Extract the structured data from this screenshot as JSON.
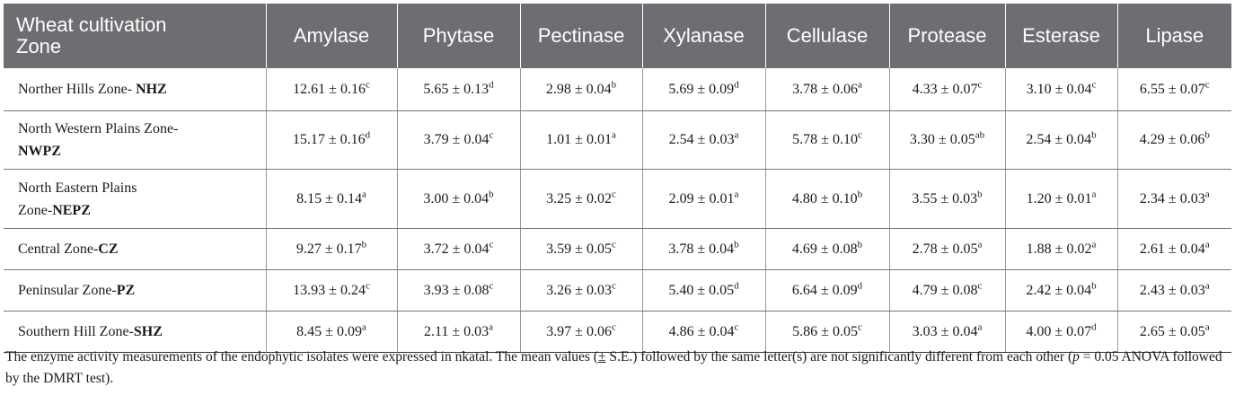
{
  "table": {
    "header_first": [
      "Wheat cultivation",
      "Zone"
    ],
    "columns": [
      "Amylase",
      "Phytase",
      "Pectinase",
      "Xylanase",
      "Cellulase",
      "Protease",
      "Esterase",
      "Lipase"
    ],
    "rows": [
      {
        "zone_lines": [
          {
            "text": "Norther Hills Zone- ",
            "abbr": "NHZ"
          }
        ],
        "values": [
          {
            "v": "12.61 ± 0.16",
            "s": "c"
          },
          {
            "v": "5.65 ± 0.13",
            "s": "d"
          },
          {
            "v": "2.98 ± 0.04",
            "s": "b"
          },
          {
            "v": "5.69 ± 0.09",
            "s": "d"
          },
          {
            "v": "3.78 ± 0.06",
            "s": "a"
          },
          {
            "v": "4.33 ± 0.07",
            "s": "c"
          },
          {
            "v": "3.10 ± 0.04",
            "s": "c"
          },
          {
            "v": "6.55 ± 0.07",
            "s": "c"
          }
        ]
      },
      {
        "zone_lines": [
          {
            "text": "North Western Plains Zone-",
            "abbr": ""
          },
          {
            "text": "",
            "abbr": "NWPZ"
          }
        ],
        "values": [
          {
            "v": "15.17 ± 0.16",
            "s": "d"
          },
          {
            "v": "3.79 ± 0.04",
            "s": "c"
          },
          {
            "v": "1.01 ± 0.01",
            "s": "a"
          },
          {
            "v": "2.54 ± 0.03",
            "s": "a"
          },
          {
            "v": "5.78 ± 0.10",
            "s": "c"
          },
          {
            "v": "3.30 ± 0.05",
            "s": "ab"
          },
          {
            "v": "2.54 ± 0.04",
            "s": "b"
          },
          {
            "v": "4.29 ± 0.06",
            "s": "b"
          }
        ]
      },
      {
        "zone_lines": [
          {
            "text": "North Eastern Plains",
            "abbr": ""
          },
          {
            "text": "Zone-",
            "abbr": "NEPZ"
          }
        ],
        "values": [
          {
            "v": "8.15 ± 0.14",
            "s": "a"
          },
          {
            "v": "3.00 ± 0.04",
            "s": "b"
          },
          {
            "v": "3.25 ± 0.02",
            "s": "c"
          },
          {
            "v": "2.09 ± 0.01",
            "s": "a"
          },
          {
            "v": "4.80 ± 0.10",
            "s": "b"
          },
          {
            "v": "3.55 ± 0.03",
            "s": "b"
          },
          {
            "v": "1.20 ± 0.01",
            "s": "a"
          },
          {
            "v": "2.34 ± 0.03",
            "s": "a"
          }
        ]
      },
      {
        "zone_lines": [
          {
            "text": "Central Zone-",
            "abbr": "CZ"
          }
        ],
        "values": [
          {
            "v": "9.27 ± 0.17",
            "s": "b"
          },
          {
            "v": "3.72 ± 0.04",
            "s": "c"
          },
          {
            "v": "3.59 ± 0.05",
            "s": "c"
          },
          {
            "v": "3.78 ± 0.04",
            "s": "b"
          },
          {
            "v": "4.69 ± 0.08",
            "s": "b"
          },
          {
            "v": "2.78 ± 0.05",
            "s": "a"
          },
          {
            "v": "1.88 ± 0.02",
            "s": "a"
          },
          {
            "v": "2.61 ± 0.04",
            "s": "a"
          }
        ]
      },
      {
        "zone_lines": [
          {
            "text": "Peninsular Zone-",
            "abbr": "PZ"
          }
        ],
        "values": [
          {
            "v": "13.93 ± 0.24",
            "s": "c"
          },
          {
            "v": "3.93 ± 0.08",
            "s": "c"
          },
          {
            "v": "3.26 ± 0.03",
            "s": "c"
          },
          {
            "v": "5.40 ± 0.05",
            "s": "d"
          },
          {
            "v": "6.64 ± 0.09",
            "s": "d"
          },
          {
            "v": "4.79 ± 0.08",
            "s": "c"
          },
          {
            "v": "2.42 ± 0.04",
            "s": "b"
          },
          {
            "v": "2.43 ± 0.03",
            "s": "a"
          }
        ]
      },
      {
        "zone_lines": [
          {
            "text": "Southern Hill Zone-",
            "abbr": "SHZ"
          }
        ],
        "values": [
          {
            "v": "8.45 ± 0.09",
            "s": "a"
          },
          {
            "v": "2.11 ± 0.03",
            "s": "a"
          },
          {
            "v": "3.97 ± 0.06",
            "s": "c"
          },
          {
            "v": "4.86 ± 0.04",
            "s": "c"
          },
          {
            "v": "5.86 ± 0.05",
            "s": "c"
          },
          {
            "v": "3.03 ± 0.04",
            "s": "a"
          },
          {
            "v": "4.00 ± 0.07",
            "s": "d"
          },
          {
            "v": "2.65 ± 0.05",
            "s": "a"
          }
        ]
      }
    ]
  },
  "footnote": {
    "part1": "The enzyme activity measurements of the endophytic isolates were expressed in nkatal. The mean values (",
    "pm": "±",
    "part2": " S.E.) followed by the same letter(s) are not significantly different from each other (",
    "p": "p",
    "part3": " = 0.05 ANOVA followed by the DMRT test)."
  },
  "colors": {
    "header_bg": "#6d6e71",
    "header_text": "#ffffff"
  }
}
